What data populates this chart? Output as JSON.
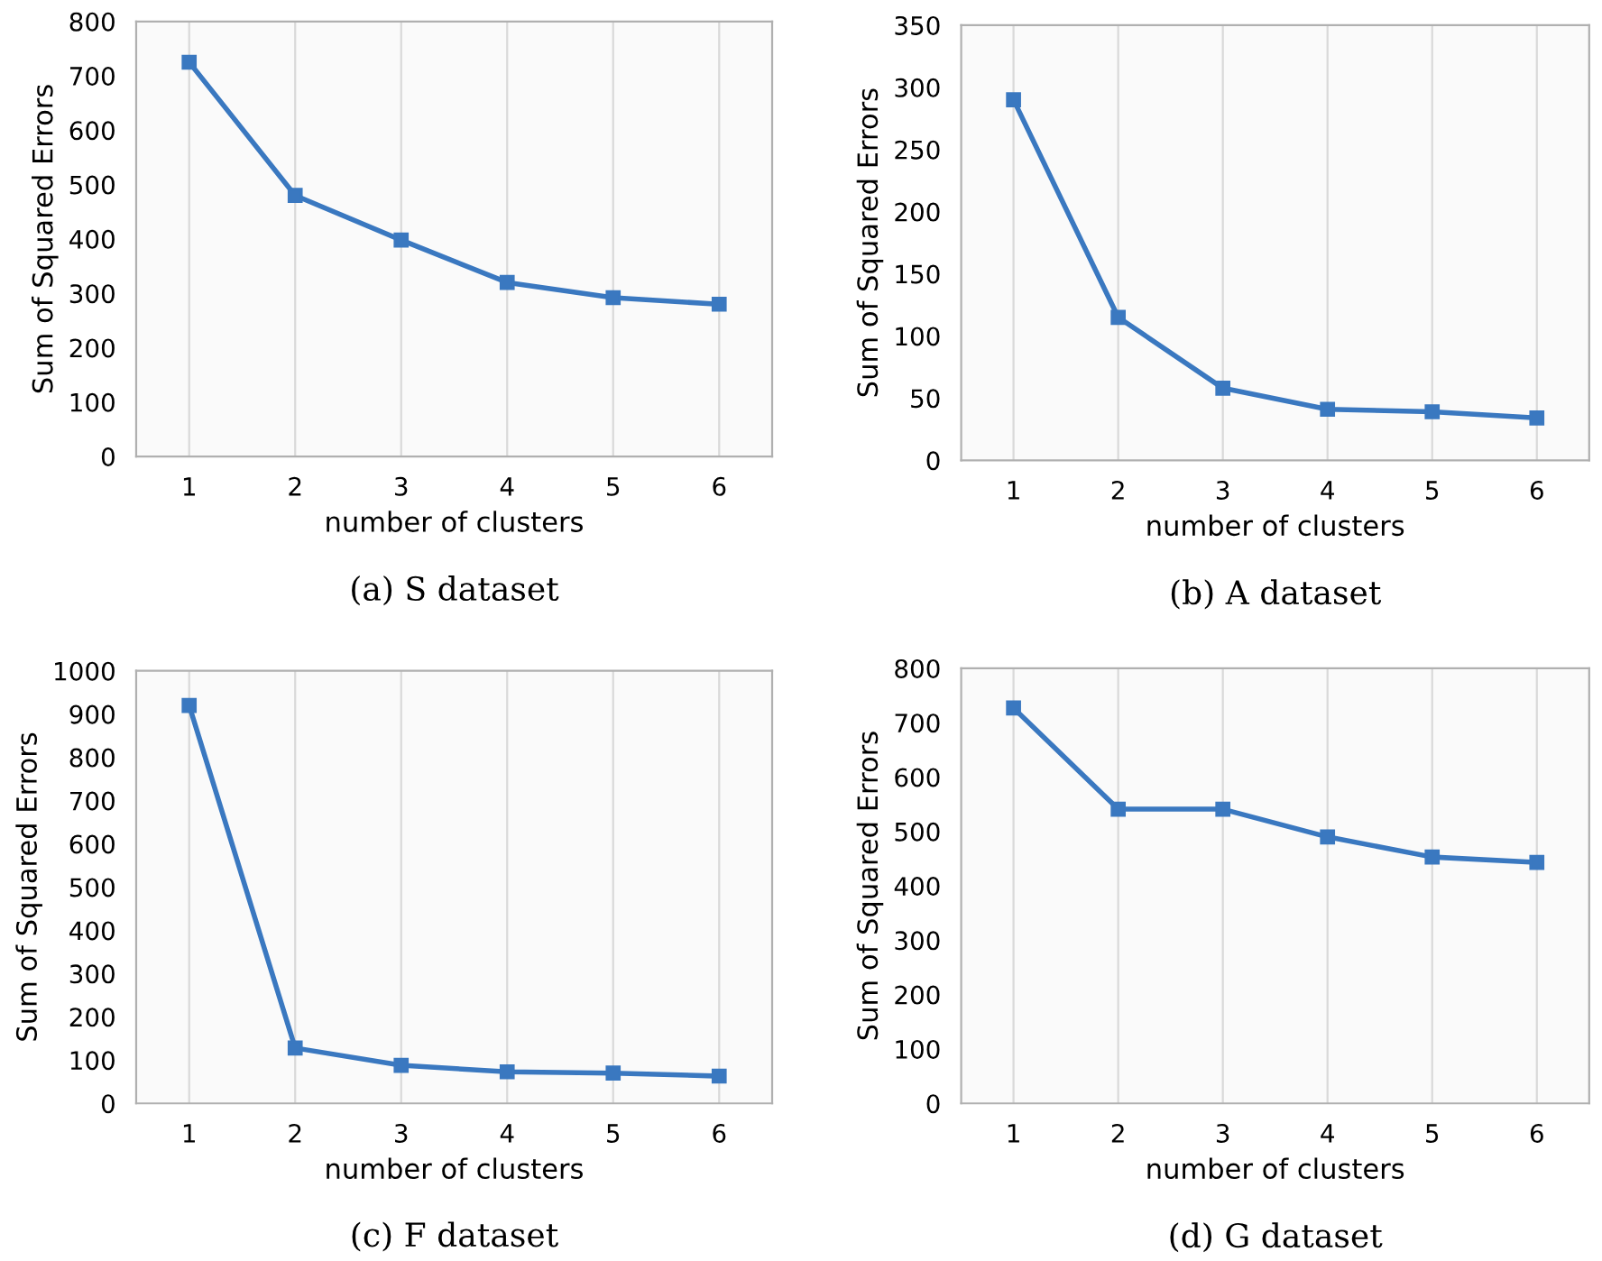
{
  "chart_data": [
    {
      "type": "line",
      "title": "(a) S dataset",
      "xlabel": "number of clusters",
      "ylabel": "Sum of Squared Errors",
      "categories": [
        "1",
        "2",
        "3",
        "4",
        "5",
        "6"
      ],
      "series": [
        {
          "color": "#3a78c0",
          "values": [
            725,
            480,
            398,
            320,
            292,
            280
          ]
        }
      ],
      "ylim": [
        0,
        800
      ],
      "yticks": [
        0,
        100,
        200,
        300,
        400,
        500,
        600,
        700,
        800
      ],
      "grid": "x",
      "marker": "square",
      "line_style": "solid",
      "legend": false
    },
    {
      "type": "line",
      "title": "(b) A dataset",
      "xlabel": "number of clusters",
      "ylabel": "Sum of Squared Errors",
      "categories": [
        "1",
        "2",
        "3",
        "4",
        "5",
        "6"
      ],
      "series": [
        {
          "color": "#3a78c0",
          "values": [
            290,
            115,
            58,
            41,
            39,
            34
          ]
        }
      ],
      "ylim": [
        0,
        350
      ],
      "yticks": [
        0,
        50,
        100,
        150,
        200,
        250,
        300,
        350
      ],
      "grid": "x",
      "marker": "square",
      "line_style": "solid",
      "legend": false
    },
    {
      "type": "line",
      "title": "(c) F dataset",
      "xlabel": "number of clusters",
      "ylabel": "Sum of Squared Errors",
      "categories": [
        "1",
        "2",
        "3",
        "4",
        "5",
        "6"
      ],
      "series": [
        {
          "color": "#3a78c0",
          "values": [
            920,
            128,
            88,
            73,
            70,
            63
          ]
        }
      ],
      "ylim": [
        0,
        1000
      ],
      "yticks": [
        0,
        100,
        200,
        300,
        400,
        500,
        600,
        700,
        800,
        900,
        1000
      ],
      "grid": "x",
      "marker": "square",
      "line_style": "solid",
      "legend": false
    },
    {
      "type": "line",
      "title": "(d) G dataset",
      "xlabel": "number of clusters",
      "ylabel": "Sum of Squared Errors",
      "categories": [
        "1",
        "2",
        "3",
        "4",
        "5",
        "6"
      ],
      "series": [
        {
          "color": "#3a78c0",
          "values": [
            727,
            541,
            541,
            490,
            453,
            443
          ]
        }
      ],
      "ylim": [
        0,
        800
      ],
      "yticks": [
        0,
        100,
        200,
        300,
        400,
        500,
        600,
        700,
        800
      ],
      "grid": "x",
      "marker": "square",
      "line_style": "solid",
      "legend": false
    }
  ]
}
